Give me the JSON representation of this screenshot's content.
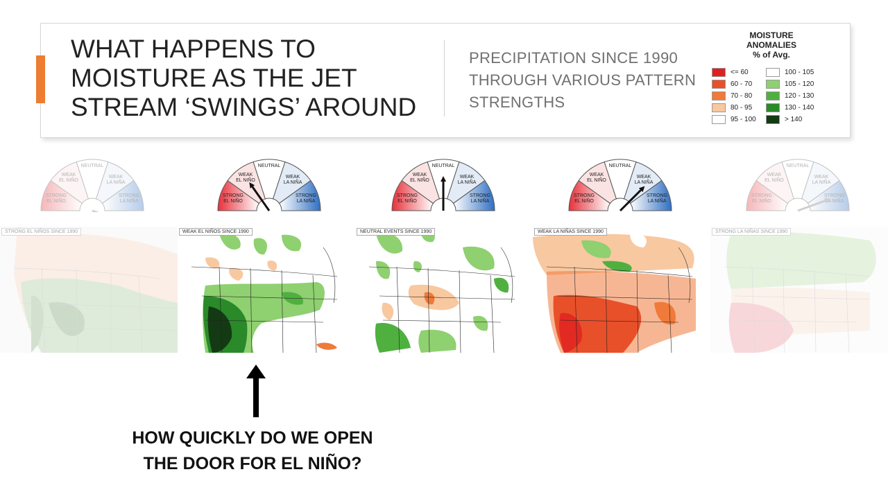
{
  "header": {
    "title": "WHAT HAPPENS TO MOISTURE AS THE JET STREAM ‘SWINGS’ AROUND",
    "subtitle": "PRECIPITATION SINCE 1990 THROUGH VARIOUS PATTERN STRENGTHS"
  },
  "legend": {
    "title": "MOISTURE ANOMALIES",
    "subtitle": "% of Avg.",
    "items": [
      {
        "label": "<= 60",
        "color": "#e02020"
      },
      {
        "label": "60 - 70",
        "color": "#e8502a"
      },
      {
        "label": "70 - 80",
        "color": "#f07a3a"
      },
      {
        "label": "80 - 95",
        "color": "#f8c8a0"
      },
      {
        "label": "95 - 100",
        "color": "#ffffff"
      },
      {
        "label": "100 - 105",
        "color": "#ffffff"
      },
      {
        "label": "105 - 120",
        "color": "#8fd070"
      },
      {
        "label": "120 - 130",
        "color": "#4fb040"
      },
      {
        "label": "130 - 140",
        "color": "#2a8a2a"
      },
      {
        "label": "> 140",
        "color": "#143a14"
      }
    ]
  },
  "gauge_labels": {
    "neutral": "NEUTRAL",
    "weak_el_nino_1": "WEAK",
    "weak_el_nino_2": "EL NIÑO",
    "weak_la_nina_1": "WEAK",
    "weak_la_nina_2": "LA NIÑA",
    "strong_el_nino_1": "STRONG",
    "strong_el_nino_2": "EL NIÑO",
    "strong_la_nina_1": "STRONG",
    "strong_la_nina_2": "LA NIÑA"
  },
  "maps": [
    {
      "label": "STRONG EL NIÑOS SINCE 1990"
    },
    {
      "label": "WEAK EL NIÑOS SINCE 1990"
    },
    {
      "label": "NEUTRAL EVENTS SINCE 1990"
    },
    {
      "label": "WEAK LA NIÑAS SINCE 1990"
    },
    {
      "label": "STRONG LA NIÑAS SINCE 1990"
    }
  ],
  "question": {
    "line1": "HOW QUICKLY DO WE OPEN",
    "line2": "THE DOOR FOR EL NIÑO?"
  }
}
